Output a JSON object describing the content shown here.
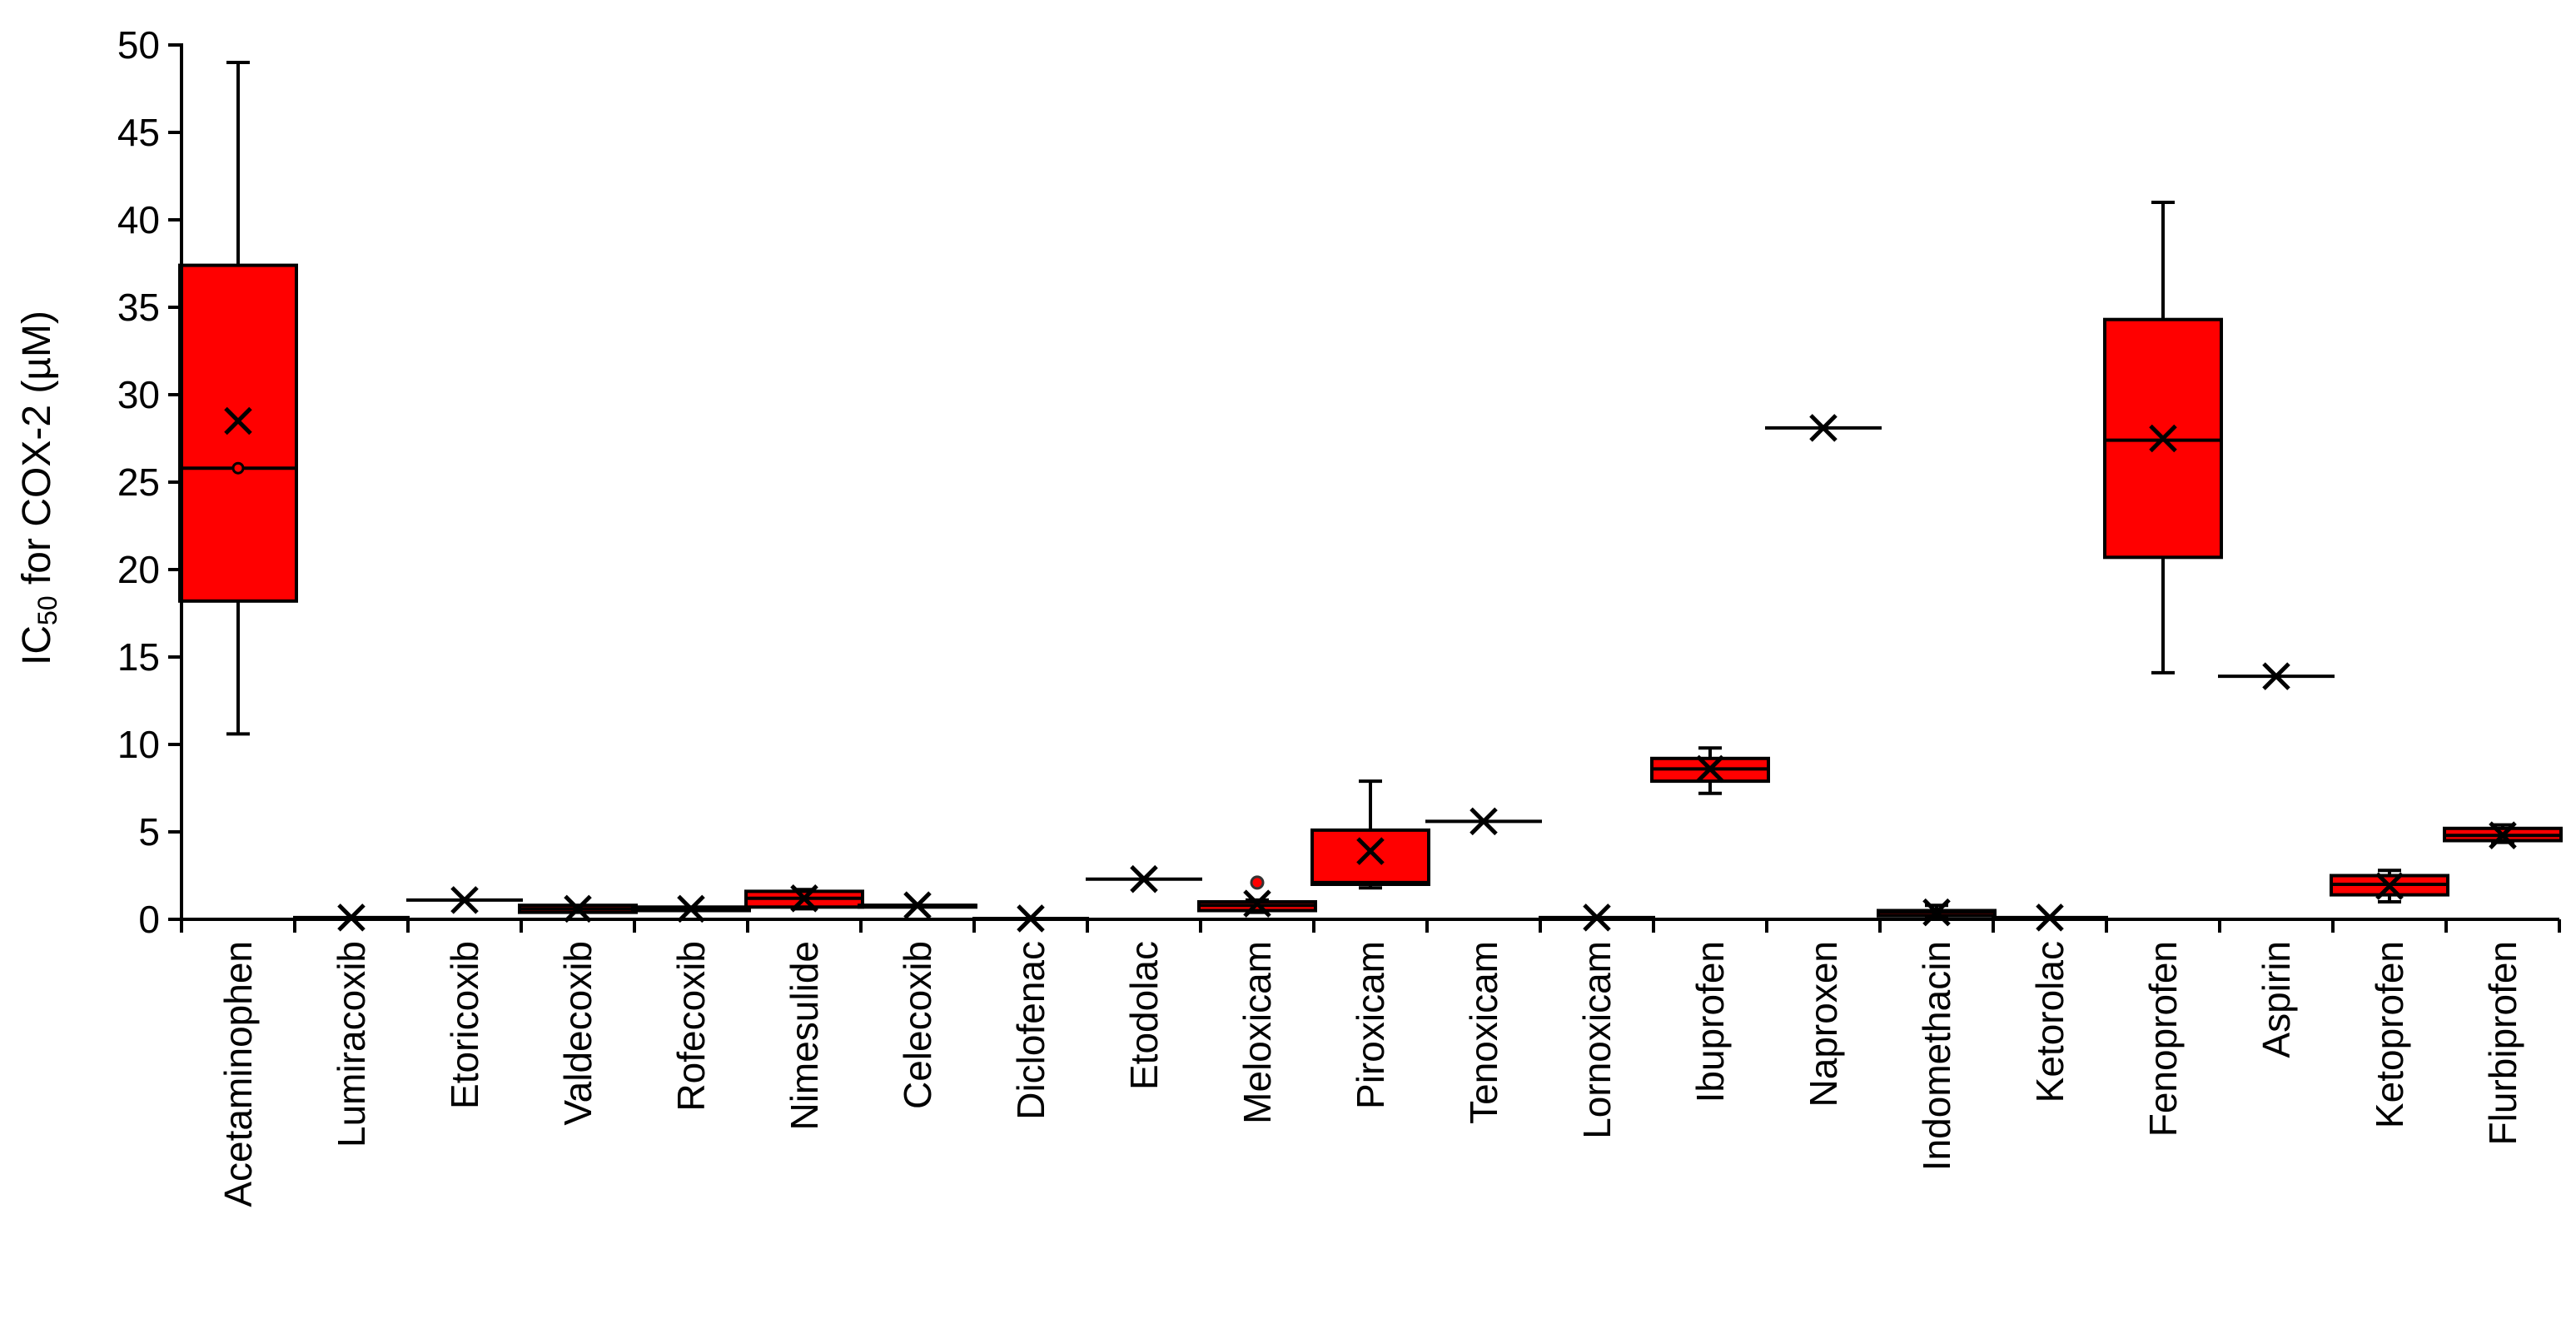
{
  "chart_data": {
    "type": "box",
    "title": "",
    "xlabel": "",
    "ylabel": {
      "prefix": "IC",
      "subscript": "50",
      "suffix": " for COX-2 (µM)"
    },
    "ylim": [
      0,
      50
    ],
    "yticks": [
      0,
      5,
      10,
      15,
      20,
      25,
      30,
      35,
      40,
      45,
      50
    ],
    "grid": false,
    "legend": "none",
    "colors": {
      "box_fill": "#ff0000",
      "stroke": "#000000"
    },
    "categories": [
      "Acetaminophen",
      "Lumiracoxib",
      "Etoricoxib",
      "Valdecoxib",
      "Rofecoxib",
      "Nimesulide",
      "Celecoxib",
      "Diclofenac",
      "Etodolac",
      "Meloxicam",
      "Piroxicam",
      "Tenoxicam",
      "Lornoxicam",
      "Ibuprofen",
      "Naproxen",
      "Indomethacin",
      "Ketorolac",
      "Fenoprofen",
      "Aspirin",
      "Ketoprofen",
      "Flurbiprofen"
    ],
    "boxes": [
      {
        "min": 10.6,
        "q1": 18.2,
        "median": 25.8,
        "q3": 37.4,
        "max": 49.0,
        "mean": 28.5,
        "outliers": [],
        "points": [
          25.8
        ]
      },
      {
        "min": 0.1,
        "q1": 0.1,
        "median": 0.1,
        "q3": 0.1,
        "max": 0.1,
        "mean": 0.1,
        "outliers": [],
        "points": []
      },
      {
        "min": 1.1,
        "q1": 1.1,
        "median": 1.1,
        "q3": 1.1,
        "max": 1.1,
        "mean": 1.1,
        "outliers": [],
        "points": []
      },
      {
        "min": 0.4,
        "q1": 0.4,
        "median": 0.6,
        "q3": 0.8,
        "max": 0.8,
        "mean": 0.6,
        "outliers": [],
        "points": []
      },
      {
        "min": 0.5,
        "q1": 0.5,
        "median": 0.6,
        "q3": 0.7,
        "max": 0.7,
        "mean": 0.6,
        "outliers": [],
        "points": []
      },
      {
        "min": 0.6,
        "q1": 0.7,
        "median": 1.2,
        "q3": 1.6,
        "max": 1.7,
        "mean": 1.2,
        "outliers": [],
        "points": []
      },
      {
        "min": 0.7,
        "q1": 0.7,
        "median": 0.8,
        "q3": 0.8,
        "max": 0.8,
        "mean": 0.8,
        "outliers": [],
        "points": []
      },
      {
        "min": 0.05,
        "q1": 0.05,
        "median": 0.05,
        "q3": 0.05,
        "max": 0.05,
        "mean": 0.05,
        "outliers": [],
        "points": []
      },
      {
        "min": 2.3,
        "q1": 2.3,
        "median": 2.3,
        "q3": 2.3,
        "max": 2.3,
        "mean": 2.3,
        "outliers": [],
        "points": []
      },
      {
        "min": 0.4,
        "q1": 0.5,
        "median": 0.8,
        "q3": 1.0,
        "max": 1.1,
        "mean": 0.9,
        "outliers": [
          2.1
        ],
        "points": []
      },
      {
        "min": 1.8,
        "q1": 2.0,
        "median": 2.1,
        "q3": 5.1,
        "max": 7.9,
        "mean": 3.9,
        "outliers": [],
        "points": []
      },
      {
        "min": 5.6,
        "q1": 5.6,
        "median": 5.6,
        "q3": 5.6,
        "max": 5.6,
        "mean": 5.6,
        "outliers": [],
        "points": []
      },
      {
        "min": 0.1,
        "q1": 0.1,
        "median": 0.1,
        "q3": 0.1,
        "max": 0.1,
        "mean": 0.1,
        "outliers": [],
        "points": []
      },
      {
        "min": 7.2,
        "q1": 7.9,
        "median": 8.6,
        "q3": 9.2,
        "max": 9.8,
        "mean": 8.6,
        "outliers": [],
        "points": []
      },
      {
        "min": 28.1,
        "q1": 28.1,
        "median": 28.1,
        "q3": 28.1,
        "max": 28.1,
        "mean": 28.1,
        "outliers": [],
        "points": []
      },
      {
        "min": 0.1,
        "q1": 0.2,
        "median": 0.4,
        "q3": 0.5,
        "max": 0.8,
        "mean": 0.4,
        "outliers": [],
        "points": []
      },
      {
        "min": 0.1,
        "q1": 0.1,
        "median": 0.1,
        "q3": 0.1,
        "max": 0.1,
        "mean": 0.1,
        "outliers": [],
        "points": []
      },
      {
        "min": 14.1,
        "q1": 20.7,
        "median": 27.4,
        "q3": 34.3,
        "max": 41.0,
        "mean": 27.5,
        "outliers": [],
        "points": []
      },
      {
        "min": 13.9,
        "q1": 13.9,
        "median": 13.9,
        "q3": 13.9,
        "max": 13.9,
        "mean": 13.9,
        "outliers": [],
        "points": []
      },
      {
        "min": 1.0,
        "q1": 1.4,
        "median": 2.0,
        "q3": 2.5,
        "max": 2.8,
        "mean": 1.9,
        "outliers": [],
        "points": []
      },
      {
        "min": 4.4,
        "q1": 4.5,
        "median": 4.8,
        "q3": 5.2,
        "max": 5.4,
        "mean": 4.8,
        "outliers": [],
        "points": []
      }
    ]
  }
}
